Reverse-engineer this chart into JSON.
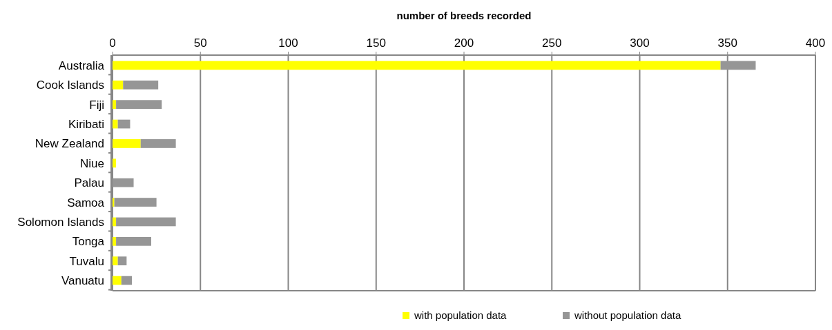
{
  "chart_data": {
    "type": "bar",
    "orientation": "horizontal",
    "stacked": true,
    "xlabel": "number of breeds recorded",
    "categories": [
      "Australia",
      "Cook Islands",
      "Fiji",
      "Kiribati",
      "New Zealand",
      "Niue",
      "Palau",
      "Samoa",
      "Solomon Islands",
      "Tonga",
      "Tuvalu",
      "Vanuatu"
    ],
    "series": [
      {
        "name": "with population data",
        "color": "#ffff00",
        "values": [
          346,
          6,
          2,
          3,
          16,
          2,
          0,
          1,
          2,
          2,
          3,
          5
        ]
      },
      {
        "name": "without population data",
        "color": "#969696",
        "values": [
          20,
          20,
          26,
          7,
          20,
          0,
          12,
          24,
          34,
          20,
          5,
          6
        ]
      }
    ],
    "xlim": [
      0,
      400
    ],
    "xticks": [
      0,
      50,
      100,
      150,
      200,
      250,
      300,
      350,
      400
    ],
    "grid": "x",
    "legend": "bottom"
  }
}
